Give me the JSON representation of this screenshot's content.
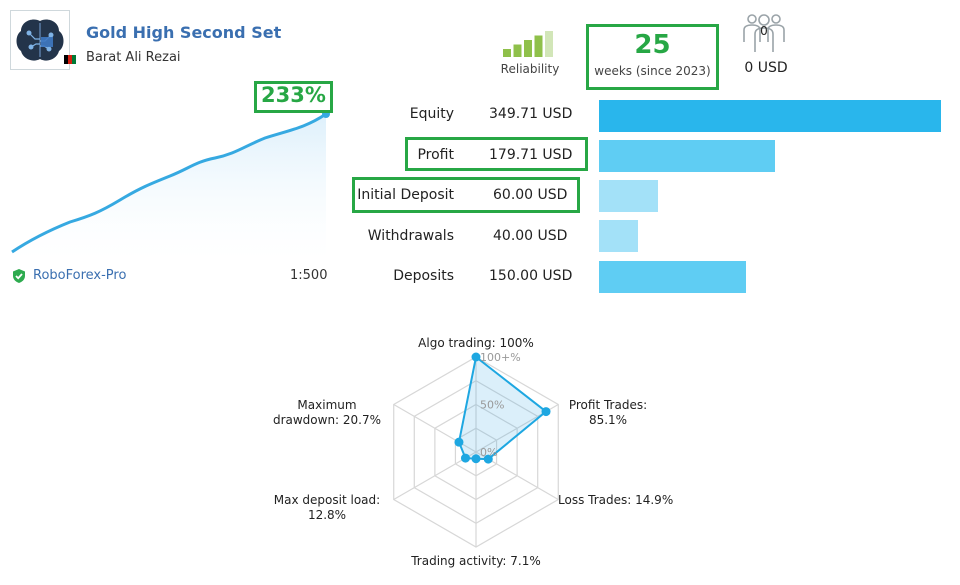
{
  "header": {
    "signal_name": "Gold High Second Set",
    "author": "Barat Ali Rezai",
    "reliability_label": "Reliability",
    "reliability_level": 0.8,
    "weeks_value": "25",
    "weeks_label": "weeks (since 2023)",
    "subscribers_count": "0",
    "subscribers_funds": "0 USD"
  },
  "growth": {
    "value": "233%",
    "broker": "RoboForex-Pro",
    "leverage": "1:500"
  },
  "stats": [
    {
      "label": "Equity",
      "value": "349.71 USD",
      "amount": 349.71,
      "color": "#29b6ec"
    },
    {
      "label": "Profit",
      "value": "179.71 USD",
      "amount": 179.71,
      "color": "#5fcdf3"
    },
    {
      "label": "Initial Deposit",
      "value": "60.00 USD",
      "amount": 60.0,
      "color": "#a3e1f8"
    },
    {
      "label": "Withdrawals",
      "value": "40.00 USD",
      "amount": 40.0,
      "color": "#a3e1f8"
    },
    {
      "label": "Deposits",
      "value": "150.00 USD",
      "amount": 150.0,
      "color": "#5fcdf3"
    }
  ],
  "radar": {
    "scale_labels": [
      "100+%",
      "50%",
      "0%"
    ],
    "axes": [
      {
        "label": "Algo trading: 100%",
        "value": 100
      },
      {
        "label": "Profit Trades:\n85.1%",
        "value": 85.1
      },
      {
        "label": "Loss Trades: 14.9%",
        "value": 14.9
      },
      {
        "label": "Trading activity: 7.1%",
        "value": 7.1
      },
      {
        "label": "Max deposit load:\n12.8%",
        "value": 12.8
      },
      {
        "label": "Maximum\ndrawdown: 20.7%",
        "value": 20.7
      }
    ]
  }
}
